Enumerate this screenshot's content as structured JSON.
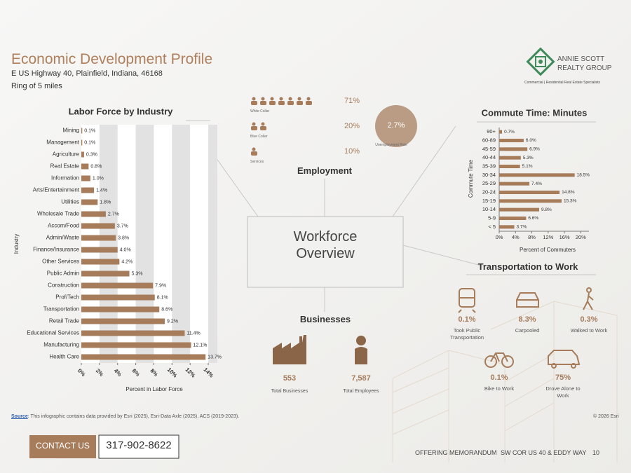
{
  "header": {
    "title": "Economic Development Profile",
    "address": "E US Highway 40, Plainfield, Indiana, 46168",
    "ring": "Ring of 5 miles"
  },
  "logo": {
    "line1": "ANNIE SCOTT",
    "line2": "REALTY GROUP",
    "tagline": "Commercial | Residential Real Estate Specialists"
  },
  "center": {
    "title": "Workforce Overview"
  },
  "chart_data": [
    {
      "type": "bar",
      "orientation": "horizontal",
      "title": "Labor Force by Industry",
      "x_label": "Percent in Labor Force",
      "y_label": "Industry",
      "categories": [
        "Mining",
        "Management",
        "Agriculture",
        "Real Estate",
        "Information",
        "Arts/Entertainment",
        "Utilities",
        "Wholesale Trade",
        "Accom/Food",
        "Admin/Waste",
        "Finance/Insurance",
        "Other Services",
        "Public Admin",
        "Construction",
        "Prof/Tech",
        "Transportation",
        "Retail Trade",
        "Educational Services",
        "Manufacturing",
        "Health Care"
      ],
      "values": [
        0.1,
        0.1,
        0.3,
        0.8,
        1.0,
        1.4,
        1.8,
        2.7,
        3.7,
        3.8,
        4.0,
        4.2,
        5.3,
        7.9,
        8.1,
        8.6,
        9.2,
        11.4,
        12.1,
        13.7
      ],
      "value_labels": [
        "0.1%",
        "0.1%",
        "0.3%",
        "0.8%",
        "1.0%",
        "1.4%",
        "1.8%",
        "2.7%",
        "3.7%",
        "3.8%",
        "4.0%",
        "4.2%",
        "5.3%",
        "7.9%",
        "8.1%",
        "8.6%",
        "9.2%",
        "11.4%",
        "12.1%",
        "13.7%"
      ],
      "color": "#a67c5b",
      "xlim": [
        0,
        15
      ],
      "xticks": [
        {
          "value": 0,
          "label": "0%"
        },
        {
          "value": 2,
          "label": "2%"
        },
        {
          "value": 4,
          "label": "4%"
        },
        {
          "value": 6,
          "label": "6%"
        },
        {
          "value": 8,
          "label": "8%"
        },
        {
          "value": 10,
          "label": "10%"
        },
        {
          "value": 12,
          "label": "12%"
        },
        {
          "value": 14,
          "label": "14%"
        }
      ],
      "striped": true
    },
    {
      "type": "bar",
      "orientation": "horizontal",
      "title": "Commute Time: Minutes",
      "x_label": "Percent of Commuters",
      "y_label": "Commute Time",
      "categories": [
        "90+",
        "60-89",
        "45-59",
        "40-44",
        "35-39",
        "30-34",
        "25-29",
        "20-24",
        "15-19",
        "10-14",
        "5-9",
        "< 5"
      ],
      "values": [
        0.7,
        6.0,
        6.9,
        5.3,
        5.1,
        18.5,
        7.4,
        14.8,
        15.3,
        9.8,
        6.6,
        3.7
      ],
      "value_labels": [
        "0.7%",
        "6.0%",
        "6.9%",
        "5.3%",
        "5.1%",
        "18.5%",
        "7.4%",
        "14.8%",
        "15.3%",
        "9.8%",
        "6.6%",
        "3.7%"
      ],
      "color": "#a67c5b",
      "xlim": [
        0,
        22
      ],
      "xticks": [
        {
          "value": 0,
          "label": "0%"
        },
        {
          "value": 4,
          "label": "4%"
        },
        {
          "value": 8,
          "label": "8%"
        },
        {
          "value": 12,
          "label": "12%"
        },
        {
          "value": 16,
          "label": "16%"
        },
        {
          "value": 20,
          "label": "20%"
        }
      ],
      "striped": false
    }
  ],
  "employment": {
    "title": "Employment",
    "groups": [
      {
        "label": "White Collar",
        "value": "71%"
      },
      {
        "label": "Blue Collar",
        "value": "20%"
      },
      {
        "label": "Services",
        "value": "10%"
      }
    ],
    "unemployment": {
      "value": "2.7%",
      "label": "Unemployment Rate"
    }
  },
  "businesses": {
    "title": "Businesses",
    "items": [
      {
        "value": "553",
        "label": "Total Businesses"
      },
      {
        "value": "7,587",
        "label": "Total Employees"
      }
    ]
  },
  "transportation": {
    "title": "Transportation to Work",
    "items": [
      {
        "value": "0.1%",
        "label": "Took Public Transportation"
      },
      {
        "value": "8.3%",
        "label": "Carpooled"
      },
      {
        "value": "0.3%",
        "label": "Walked to Work"
      },
      {
        "value": "0.1%",
        "label": "Bike to Work"
      },
      {
        "value": "75%",
        "label": "Drove Alone to Work"
      }
    ]
  },
  "source": {
    "label": "Source",
    "text": ": This infographic contains data provided by Esri (2025), Esri-Data Axle (2025), ACS (2019-2023).",
    "copyright": "© 2026 Esri"
  },
  "footer": {
    "contact": "CONTACT US",
    "phone": "317-902-8622",
    "memo": "OFFERING MEMORANDUM",
    "site": "SW COR US 40 & EDDY WAY",
    "page": "10"
  }
}
